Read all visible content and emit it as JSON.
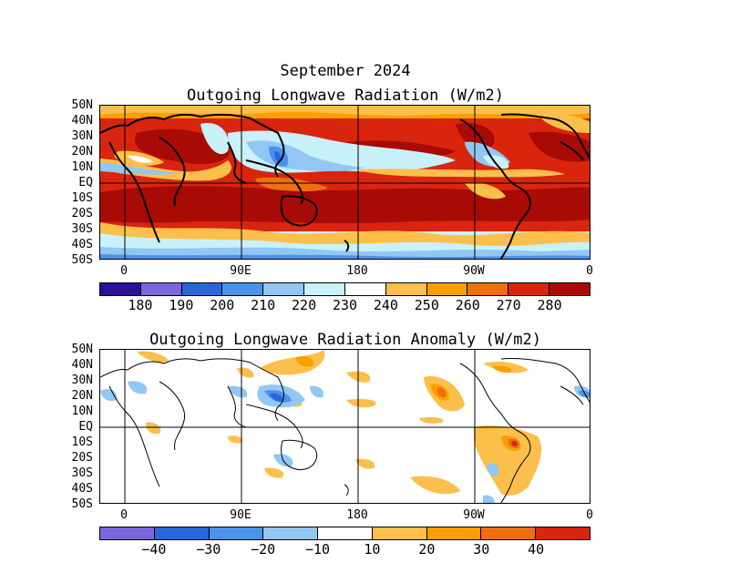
{
  "header": {
    "title": "September 2024"
  },
  "panels": [
    {
      "title": "Outgoing Longwave Radiation (W/m2)",
      "lat_labels": [
        "50N",
        "40N",
        "30N",
        "20N",
        "10N",
        "EQ",
        "10S",
        "20S",
        "30S",
        "40S",
        "50S"
      ],
      "lon_labels": [
        "0",
        "90E",
        "180",
        "90W",
        "0"
      ],
      "colorbar": {
        "colors": [
          "#2b0f9a",
          "#7a67db",
          "#2966dc",
          "#4a92ea",
          "#93c7f3",
          "#c8f1fa",
          "#ffffff",
          "#fdbf4b",
          "#f9a000",
          "#f06e0f",
          "#d9250e",
          "#a80a06"
        ],
        "labels": [
          "180",
          "190",
          "200",
          "210",
          "220",
          "230",
          "240",
          "250",
          "260",
          "270",
          "280"
        ]
      }
    },
    {
      "title": "Outgoing Longwave Radiation Anomaly (W/m2)",
      "lat_labels": [
        "50N",
        "40N",
        "30N",
        "20N",
        "10N",
        "EQ",
        "10S",
        "20S",
        "30S",
        "40S",
        "50S"
      ],
      "lon_labels": [
        "0",
        "90E",
        "180",
        "90W",
        "0"
      ],
      "colorbar": {
        "colors": [
          "#7a67db",
          "#2966dc",
          "#4a92ea",
          "#93c7f3",
          "#ffffff",
          "#fdbf4b",
          "#f9a000",
          "#f06e0f",
          "#d9250e"
        ],
        "labels": [
          "−40",
          "−30",
          "−20",
          "−10",
          "10",
          "20",
          "30",
          "40"
        ]
      }
    }
  ]
}
